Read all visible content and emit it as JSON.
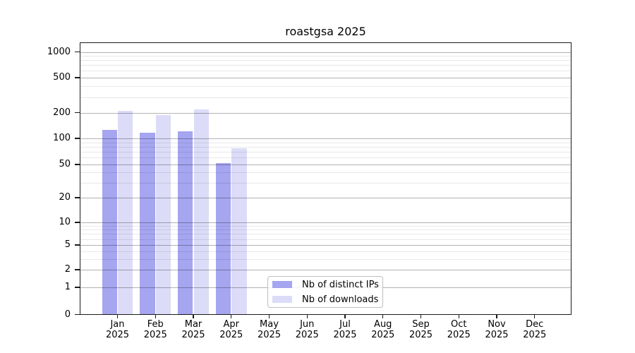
{
  "chart_data": {
    "type": "bar",
    "title": "roastgsa 2025",
    "x": [
      "Jan",
      "Feb",
      "Mar",
      "Apr",
      "May",
      "Jun",
      "Jul",
      "Aug",
      "Sep",
      "Oct",
      "Nov",
      "Dec"
    ],
    "x_year": "2025",
    "series": [
      {
        "name": "Nb of distinct IPs",
        "color": "#a5a5f0",
        "values": [
          126,
          117,
          121,
          52,
          null,
          null,
          null,
          null,
          null,
          null,
          null,
          null
        ]
      },
      {
        "name": "Nb of downloads",
        "color": "#dcdcf8",
        "values": [
          208,
          186,
          219,
          77,
          null,
          null,
          null,
          null,
          null,
          null,
          null,
          null
        ]
      }
    ],
    "y_ticks": [
      0,
      1,
      2,
      5,
      10,
      20,
      50,
      100,
      200,
      500,
      1000
    ],
    "y_scale": "log-like with 0 baseline",
    "ylim": [
      0,
      1300
    ],
    "grid": "horizontal major and minor gridlines drawn over bars",
    "legend_position": "inside plot, lower center-left"
  },
  "legend": {
    "items": [
      {
        "label": "Nb of distinct IPs",
        "color": "#a5a5f0"
      },
      {
        "label": "Nb of downloads",
        "color": "#dcdcf8"
      }
    ]
  }
}
